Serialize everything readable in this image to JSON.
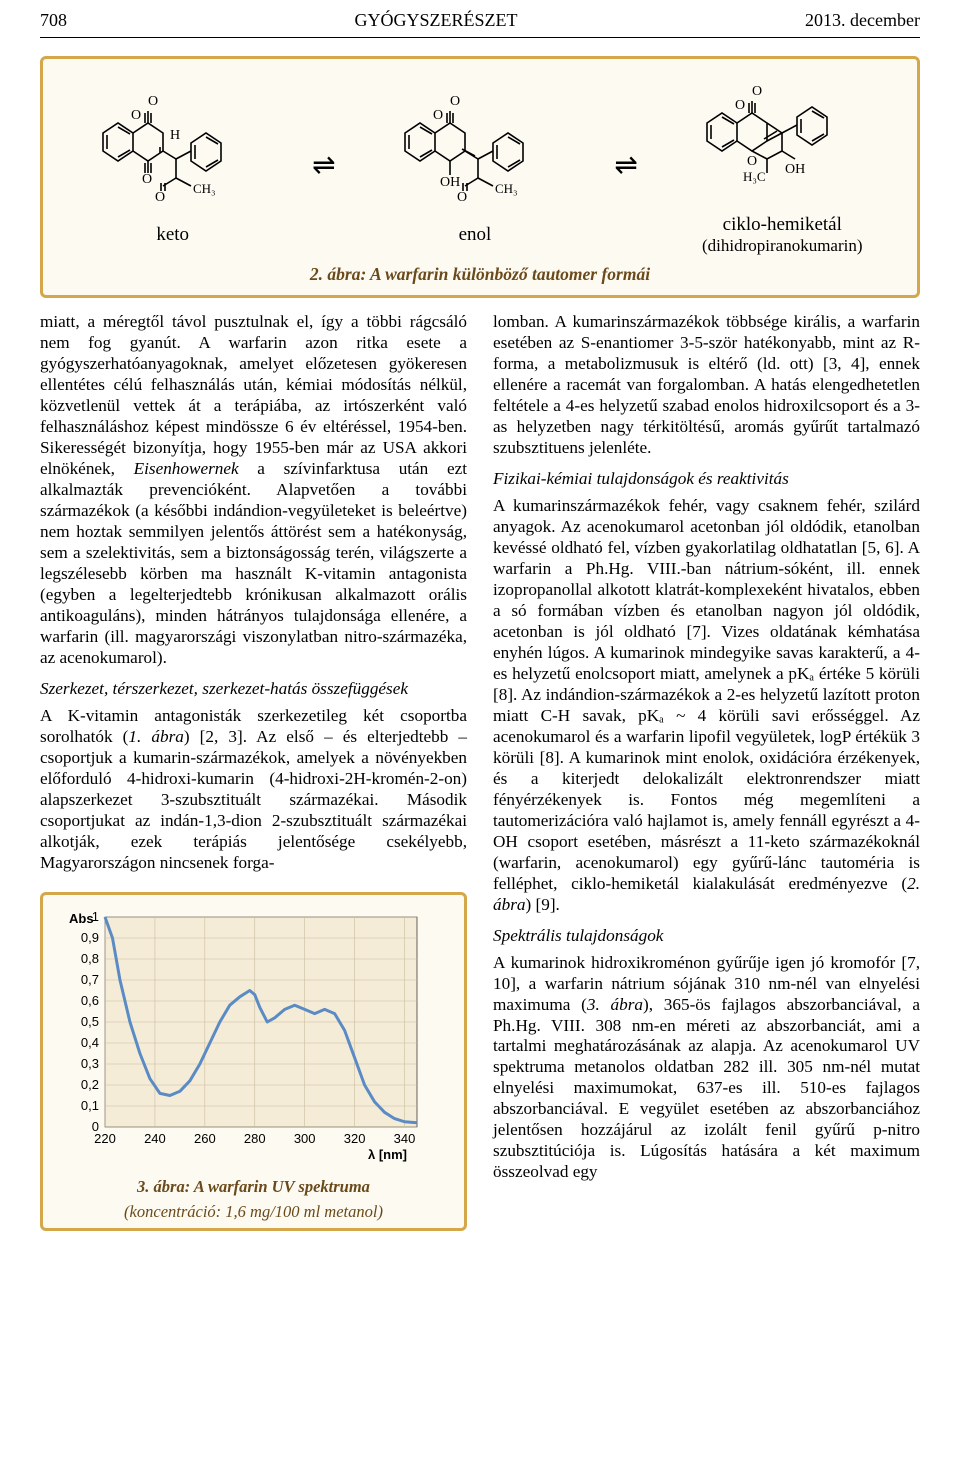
{
  "header": {
    "page_num": "708",
    "journal": "GYÓGYSZERÉSZET",
    "date": "2013. december"
  },
  "fig2": {
    "labels": {
      "keto": "keto",
      "enol": "enol",
      "ciklo": "ciklo-hemiketál",
      "dihidro": "(dihidropiranokumarin)"
    },
    "caption": "2. ábra: A warfarin különböző tautomer formái",
    "colors": {
      "border": "#d4a84a",
      "bg": "#fdfaf2"
    }
  },
  "col_left": {
    "p1": "miatt, a méregtől távol pusztulnak el, így a többi rágcsáló nem fog gyanút. A warfarin azon ritka esete a gyógyszerhatóanyagoknak, amelyet előzetesen gyökeresen ellentétes célú felhasználás után, kémiai módosítás nélkül, közvetlenül vettek át a terápiába, az irtószerként való felhasználáshoz képest mindössze 6 év eltéréssel, 1954-ben. Sikerességét bizonyítja, hogy 1955-ben már az USA akkori elnökének, ",
    "p1_ital": "Eisenhowernek",
    "p1b": " a szívinfarktusa után ezt alkalmazták prevencióként. Alapvetően a további származékok (a későbbi indándion-vegyületeket is beleértve) nem hoztak semmilyen jelentős áttörést sem a hatékonyság, sem a szelektivitás, sem a biztonságosság terén, világszerte a legszélesebb körben ma használt K-vitamin antagonista (egyben a legelterjedtebb krónikusan alkalmazott orális antikoaguláns), minden hátrányos tulajdonsága ellenére, a warfarin (ill. magyarországi viszonylatban nitro-származéka, az acenokumarol).",
    "sec1_head": "Szerkezet, térszerkezet, szerkezet-hatás összefüggések",
    "sec1_p1a": "A K-vitamin antagonisták szerkezetileg két csoportba sorolhatók (",
    "sec1_p1_ital": "1. ábra",
    "sec1_p1b": ") [2, 3]. Az első – és elterjedtebb – csoportjuk a kumarin-származékok, amelyek a növényekben előforduló 4-hidroxi-kumarin (4-hidroxi-2H-kromén-2-on) alapszerkezet 3-szubsztituált származékai. Második csoportjukat az indán-1,3-dion 2-szubsztituált származékai alkotják, ezek terápiás jelentősége csekélyebb, Magyarországon nincsenek forga-"
  },
  "col_right": {
    "p1": "lomban. A kumarinszármazékok többsége királis, a warfarin esetében az S-enantiomer 3-5-ször hatékonyabb, mint az R-forma, a metabolizmusuk is eltérő (ld. ott) [3, 4], ennek ellenére a racemát van forgalomban. A hatás elengedhetetlen feltétele a 4-es helyzetű szabad enolos hidroxilcsoport és a 3-as helyzetben nagy térkitöltésű, aromás gyűrűt tartalmazó szubsztituens jelenléte.",
    "sec1_head": "Fizikai-kémiai tulajdonságok és reaktivitás",
    "sec1_p1a": "A kumarinszármazékok fehér, vagy csaknem fehér, szilárd anyagok. Az acenokumarol acetonban jól oldódik, etanolban kevéssé oldható fel, vízben gyakorlatilag oldhatatlan [5, 6]. A warfarin a Ph.Hg. VIII.-ban nátrium-sóként, ill. ennek izopropanollal alkotott klatrát-komplexeként hivatalos, ebben a só formában vízben és etanolban nagyon jól oldódik, acetonban is jól oldható [7]. Vizes oldatának kémhatása enyhén lúgos. A kumarinok mindegyike savas karakterű, a 4-es helyzetű enolcsoport miatt, amelynek a pKₐ értéke 5 körüli [8]. Az indándion-származékok a 2-es helyzetű lazított proton miatt C-H savak, pKₐ ~ 4 körüli savi erősséggel. Az acenokumarol és a warfarin lipofil vegyületek, logP értékük 3 körüli [8]. A kumarinok mint enolok, oxidációra érzékenyek, és a kiterjedt delokalizált elektronrendszer miatt fényérzékenyek is. Fontos még megemlíteni a tautomerizációra való hajlamot is, amely fennáll egyrészt a 4-OH csoport esetében, másrészt a 11-keto származékoknál (warfarin, acenokumarol) egy gyűrű-lánc tautoméria is felléphet, ciklo-hemiketál kialakulását eredményezve (",
    "sec1_p1_ital": "2. ábra",
    "sec1_p1b": ") [9].",
    "sec2_head": "Spektrális tulajdonságok",
    "sec2_p1a": "A kumarinok hidroxikroménon gyűrűje igen jó kromofór [7, 10], a warfarin nátrium sójának 310 nm-nél van elnyelési maximuma (",
    "sec2_p1_ital": "3. ábra",
    "sec2_p1b": "), 365-ös fajlagos abszorbanciával, a Ph.Hg. VIII. 308 nm-en méreti az abszorbanciát, ami a tartalmi meghatározásának az alapja. Az acenokumarol UV spektruma metanolos oldatban 282 ill. 305 nm-nél mutat elnyelési maximumokat, 637-es ill. 510-es fajlagos abszorbanciával. E vegyület esetében az abszorbanciához jelentősen hozzájárul az izolált fenil gyűrű p-nitro szubsztitúciója is. Lúgosítás hatására a két maximum összeolvad egy"
  },
  "fig3": {
    "type": "line-spectrum",
    "xlabel": "λ [nm]",
    "ylabel": "Abs",
    "xlim": [
      220,
      345
    ],
    "ylim": [
      0,
      1
    ],
    "yticks": [
      0,
      0.1,
      0.2,
      0.3,
      0.4,
      0.5,
      0.6,
      0.7,
      0.8,
      0.9,
      1
    ],
    "xticks": [
      220,
      240,
      260,
      280,
      300,
      320,
      340
    ],
    "line_color": "#5b8bc4",
    "line_width": 3,
    "bg": "#f5ecd8",
    "points": [
      [
        220,
        1.0
      ],
      [
        223,
        0.9
      ],
      [
        226,
        0.7
      ],
      [
        230,
        0.5
      ],
      [
        234,
        0.35
      ],
      [
        238,
        0.23
      ],
      [
        242,
        0.16
      ],
      [
        246,
        0.15
      ],
      [
        250,
        0.17
      ],
      [
        254,
        0.22
      ],
      [
        258,
        0.3
      ],
      [
        262,
        0.4
      ],
      [
        266,
        0.5
      ],
      [
        270,
        0.58
      ],
      [
        274,
        0.62
      ],
      [
        278,
        0.65
      ],
      [
        280,
        0.63
      ],
      [
        282,
        0.57
      ],
      [
        285,
        0.5
      ],
      [
        288,
        0.52
      ],
      [
        292,
        0.56
      ],
      [
        296,
        0.58
      ],
      [
        300,
        0.56
      ],
      [
        304,
        0.54
      ],
      [
        308,
        0.56
      ],
      [
        312,
        0.54
      ],
      [
        316,
        0.46
      ],
      [
        320,
        0.33
      ],
      [
        324,
        0.2
      ],
      [
        328,
        0.12
      ],
      [
        332,
        0.07
      ],
      [
        336,
        0.04
      ],
      [
        340,
        0.025
      ],
      [
        345,
        0.02
      ]
    ],
    "caption1": "3. ábra: A warfarin UV spektruma",
    "caption2": "(koncentráció: 1,6 mg/100 ml metanol)"
  }
}
